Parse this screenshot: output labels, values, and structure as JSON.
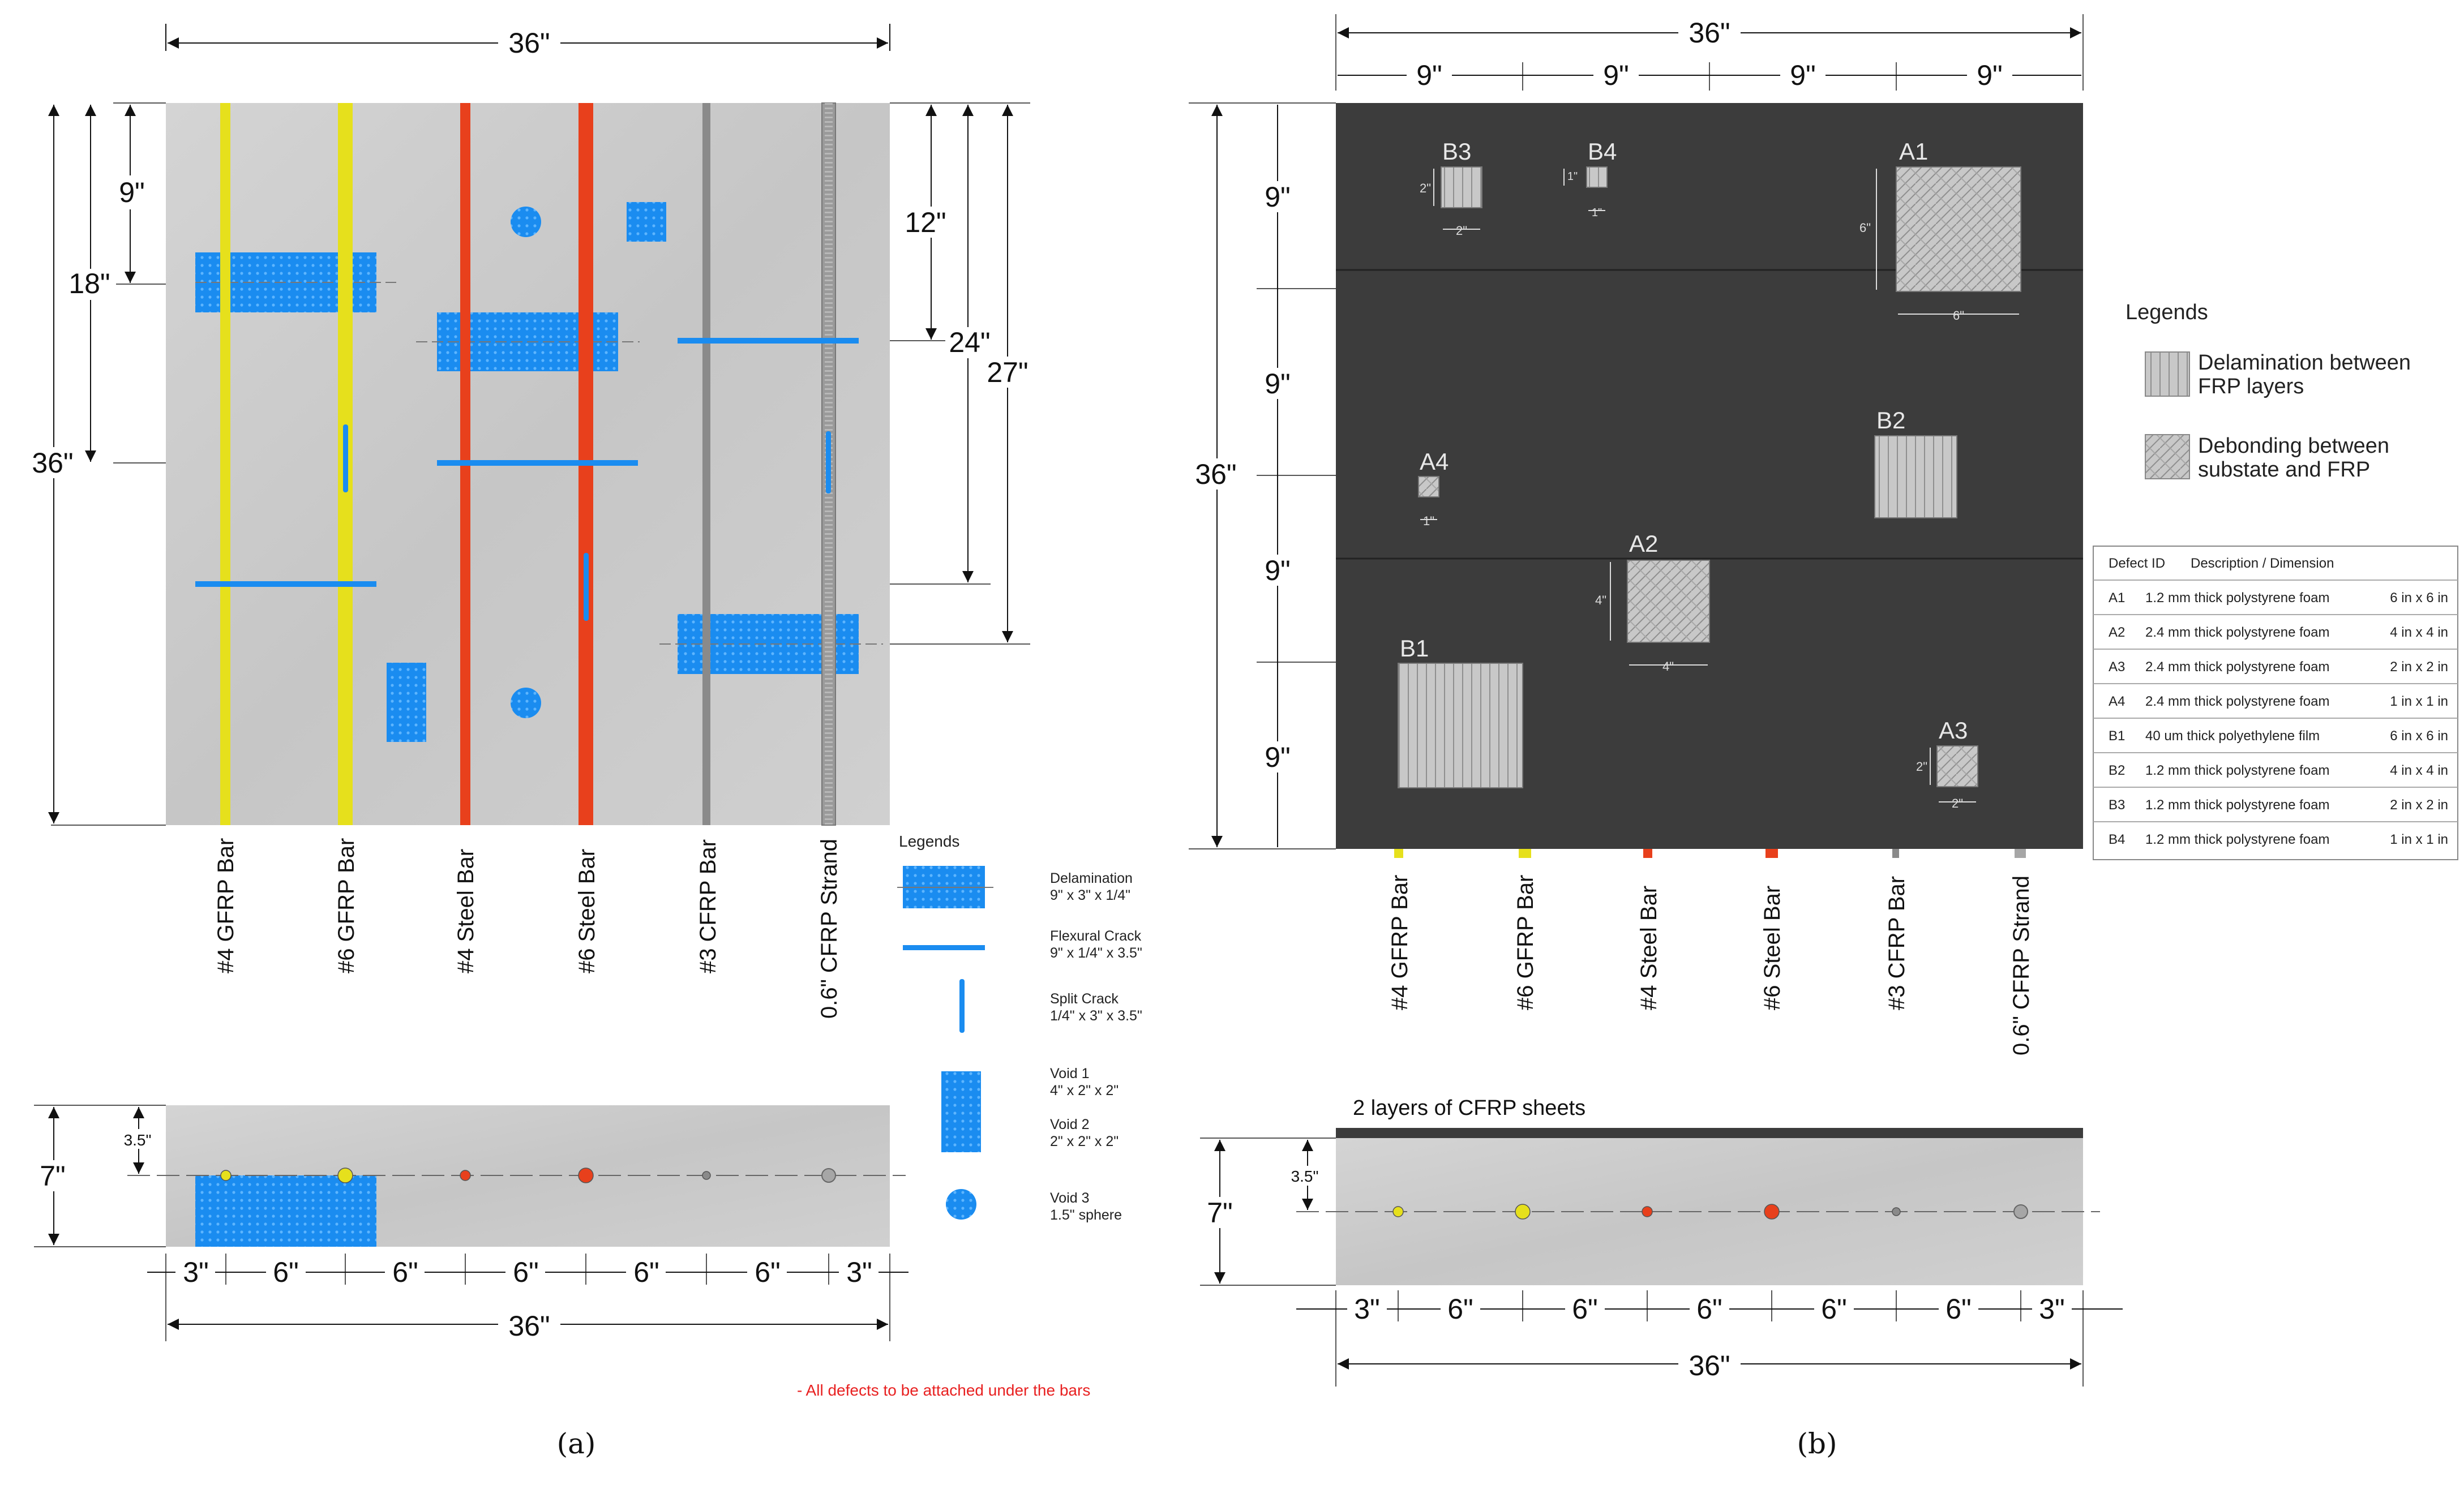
{
  "panel_a": {
    "caption": "(a)",
    "top_dim": "36\"",
    "left_dims": [
      "9\"",
      "18\"",
      "36\""
    ],
    "right_dims": [
      "12\"",
      "24\"",
      "27\""
    ],
    "bars": [
      "#4 GFRP Bar",
      "#6 GFRP Bar",
      "#4 Steel Bar",
      "#6 Steel Bar",
      "#3 CFRP Bar",
      "0.6\" CFRP Strand"
    ],
    "legend_title": "Legends",
    "legend": [
      {
        "name": "Delamination",
        "dim": "9\" x 3\" x 1/4\""
      },
      {
        "name": "Flexural Crack",
        "dim": "9\" x 1/4\" x 3.5\""
      },
      {
        "name": "Split Crack",
        "dim": "1/4\" x 3\" x 3.5\""
      },
      {
        "name": "Void 1",
        "dim": "4\" x 2\" x 2\""
      },
      {
        "name": "Void 2",
        "dim": "2\" x 2\" x 2\""
      },
      {
        "name": "Void 3",
        "dim": "1.5\" sphere"
      }
    ],
    "section_depth": "7\"",
    "section_cover": "3.5\"",
    "spacings": [
      "3\"",
      "6\"",
      "6\"",
      "6\"",
      "6\"",
      "6\"",
      "3\""
    ],
    "bottom_total": "36\"",
    "note": "- All defects to be attached under the bars"
  },
  "panel_b": {
    "caption": "(b)",
    "top_dim": "36\"",
    "quarter_dims": [
      "9\"",
      "9\"",
      "9\"",
      "9\""
    ],
    "left_total": "36\"",
    "left_dims": [
      "9\"",
      "9\"",
      "9\"",
      "9\""
    ],
    "defects": [
      {
        "id": "A1",
        "size": "6\""
      },
      {
        "id": "A2",
        "size": "4\""
      },
      {
        "id": "A3",
        "size": "2\""
      },
      {
        "id": "A4",
        "size": "1\""
      },
      {
        "id": "B1",
        "size": ""
      },
      {
        "id": "B2",
        "size": ""
      },
      {
        "id": "B3",
        "size": "2\""
      },
      {
        "id": "B4",
        "size": "1\""
      }
    ],
    "bars": [
      "#4 GFRP Bar",
      "#6 GFRP Bar",
      "#4 Steel Bar",
      "#6 Steel Bar",
      "#3 CFRP Bar",
      "0.6\" CFRP Strand"
    ],
    "legend_title": "Legends",
    "legend": [
      {
        "line1": "Delamination between",
        "line2": "FRP layers"
      },
      {
        "line1": "Debonding between",
        "line2": "substate and FRP"
      }
    ],
    "table": {
      "headers": [
        "Defect ID",
        "Description / Dimension"
      ],
      "rows": [
        {
          "id": "A1",
          "desc": "1.2 mm thick polystyrene foam",
          "dim": "6 in x 6 in"
        },
        {
          "id": "A2",
          "desc": "2.4 mm thick polystyrene foam",
          "dim": "4 in x 4 in"
        },
        {
          "id": "A3",
          "desc": "2.4 mm thick polystyrene foam",
          "dim": "2 in x 2 in"
        },
        {
          "id": "A4",
          "desc": "2.4 mm thick polystyrene foam",
          "dim": "1 in x 1 in"
        },
        {
          "id": "B1",
          "desc": "40 um thick polyethylene film",
          "dim": "6 in x 6 in"
        },
        {
          "id": "B2",
          "desc": "1.2 mm thick polystyrene foam",
          "dim": "4 in x 4 in"
        },
        {
          "id": "B3",
          "desc": "1.2 mm thick polystyrene foam",
          "dim": "2 in x 2 in"
        },
        {
          "id": "B4",
          "desc": "1.2 mm thick polystyrene foam",
          "dim": "1 in x 1 in"
        }
      ]
    },
    "section_title": "2 layers of CFRP sheets",
    "section_depth": "7\"",
    "section_cover": "3.5\"",
    "spacings": [
      "3\"",
      "6\"",
      "6\"",
      "6\"",
      "6\"",
      "6\"",
      "3\""
    ],
    "bottom_total": "36\""
  },
  "colors": {
    "gfrp": "#e6e01c",
    "steel": "#e8401c",
    "cfrp": "#8a8a8a",
    "defect_blue": "#1a8cf0",
    "frp_dark": "#3c3c3c",
    "concrete": "#cfcfcf"
  }
}
